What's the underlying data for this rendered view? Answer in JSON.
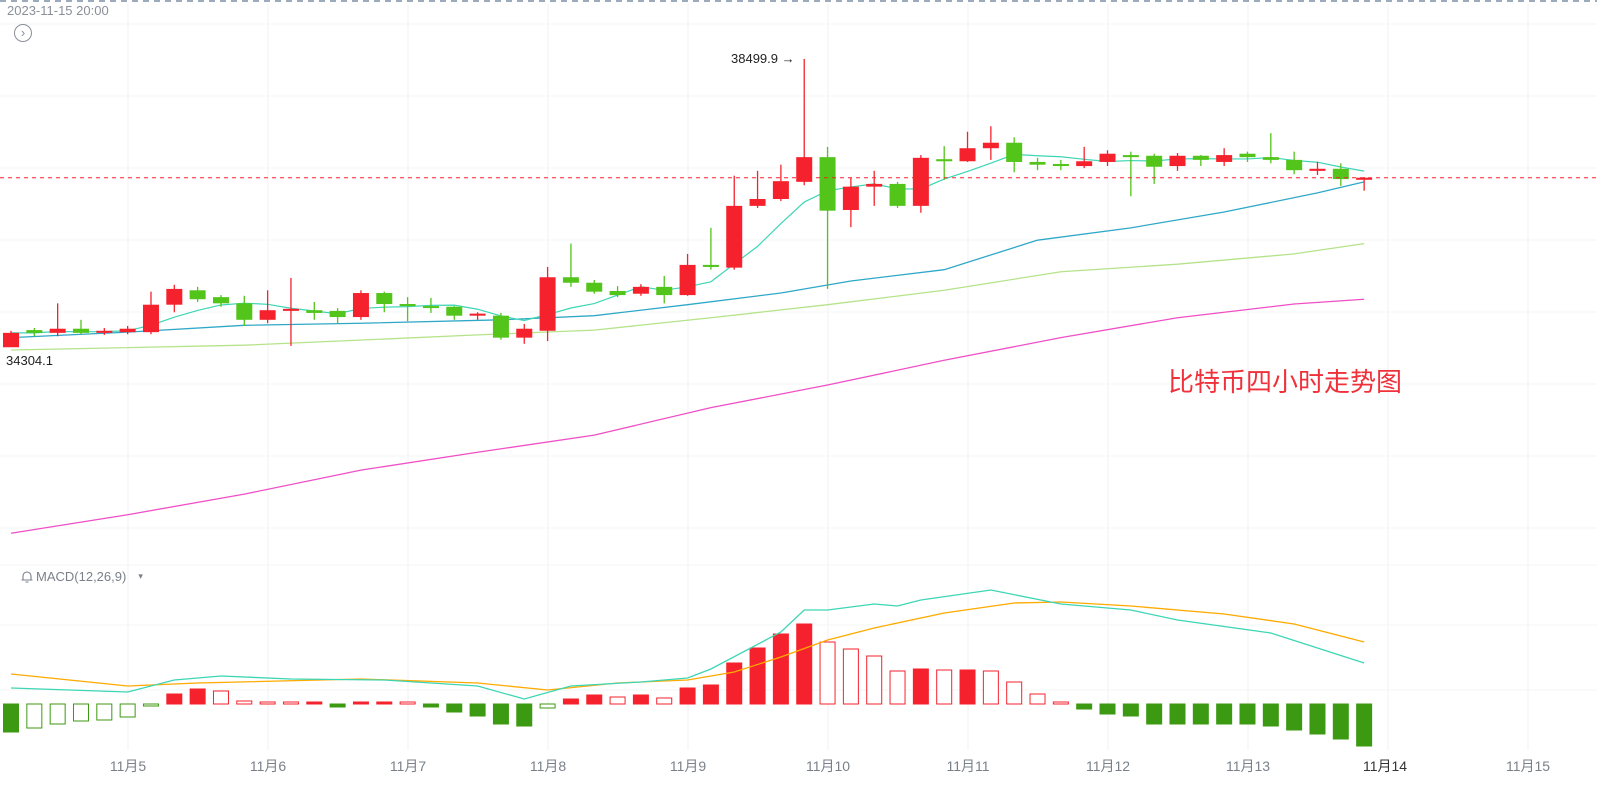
{
  "header": {
    "timestamp": "2023-11-15 20:00",
    "nav_icon": "chevron-right-circle-icon"
  },
  "annotation": {
    "title": "比特币四小时走势图",
    "high_label": "38499.9",
    "high_arrow": "→",
    "low_label": "34304.1"
  },
  "indicator": {
    "label": "MACD(12,26,9)",
    "icon": "bell-icon",
    "dropdown": "▾"
  },
  "colors": {
    "up": "#f5222d",
    "down": "#52c41a",
    "ma5": "#3dd6b5",
    "ma_blue": "#2fa8c8",
    "ma_green": "#b5e38a",
    "ma_magenta": "#f04fc6",
    "dif": "#3dd6b5",
    "dea": "#ffaa00",
    "last_price_line": "#f5222d",
    "macd_up": "#f5222d",
    "macd_down": "#3c9a12"
  },
  "chart_data": {
    "type": "candlestick",
    "title": "比特币四小时走势图",
    "interval": "4h",
    "x_tick_labels": [
      "11月5",
      "11月6",
      "11月7",
      "11月8",
      "11月9",
      "11月10",
      "11月11",
      "11月12",
      "11月13",
      "11月14",
      "11月15"
    ],
    "current_x_label": "11月14",
    "last_price": 36770,
    "price_range": [
      31500,
      38500
    ],
    "candles_ohlc": [
      [
        34300,
        34540,
        34304.1,
        34510
      ],
      [
        34550,
        34580,
        34460,
        34510
      ],
      [
        34510,
        34940,
        34460,
        34570
      ],
      [
        34570,
        34700,
        34490,
        34510
      ],
      [
        34510,
        34580,
        34480,
        34540
      ],
      [
        34520,
        34610,
        34490,
        34570
      ],
      [
        34520,
        35110,
        34490,
        34920
      ],
      [
        34920,
        35210,
        34810,
        35150
      ],
      [
        35130,
        35180,
        34960,
        35000
      ],
      [
        35030,
        35060,
        34890,
        34940
      ],
      [
        34940,
        35050,
        34610,
        34700
      ],
      [
        34700,
        35130,
        34650,
        34840
      ],
      [
        34830,
        35310,
        34320,
        34860
      ],
      [
        34840,
        34960,
        34700,
        34800
      ],
      [
        34830,
        34870,
        34650,
        34740
      ],
      [
        34740,
        35130,
        34700,
        35090
      ],
      [
        35090,
        35110,
        34810,
        34930
      ],
      [
        34930,
        35030,
        34680,
        34900
      ],
      [
        34900,
        35020,
        34800,
        34890
      ],
      [
        34890,
        34900,
        34700,
        34760
      ],
      [
        34760,
        34810,
        34700,
        34790
      ],
      [
        34760,
        34800,
        34410,
        34440
      ],
      [
        34440,
        34640,
        34350,
        34570
      ],
      [
        34540,
        35470,
        34390,
        35320
      ],
      [
        35320,
        35810,
        35180,
        35240
      ],
      [
        35240,
        35280,
        35080,
        35110
      ],
      [
        35120,
        35190,
        35030,
        35060
      ],
      [
        35080,
        35220,
        35050,
        35180
      ],
      [
        35180,
        35340,
        34940,
        35060
      ],
      [
        35060,
        35660,
        35050,
        35500
      ],
      [
        35500,
        36040,
        35430,
        35470
      ],
      [
        35460,
        36800,
        35430,
        36360
      ],
      [
        36360,
        36870,
        36330,
        36460
      ],
      [
        36460,
        36960,
        36430,
        36720
      ],
      [
        36710,
        38499.9,
        36660,
        37070
      ],
      [
        37070,
        37220,
        35150,
        36290
      ],
      [
        36300,
        36770,
        36050,
        36640
      ],
      [
        36640,
        36870,
        36360,
        36680
      ],
      [
        36680,
        36710,
        36330,
        36360
      ],
      [
        36360,
        37100,
        36260,
        37060
      ],
      [
        37040,
        37230,
        36740,
        37010
      ],
      [
        37010,
        37440,
        37000,
        37200
      ],
      [
        37200,
        37520,
        37030,
        37280
      ],
      [
        37280,
        37360,
        36850,
        37000
      ],
      [
        37000,
        37060,
        36880,
        36960
      ],
      [
        36970,
        37030,
        36880,
        36940
      ],
      [
        36940,
        37220,
        36910,
        37010
      ],
      [
        37000,
        37170,
        36940,
        37120
      ],
      [
        37100,
        37150,
        36500,
        37070
      ],
      [
        37090,
        37120,
        36680,
        36930
      ],
      [
        36940,
        37130,
        36870,
        37090
      ],
      [
        37090,
        37100,
        36940,
        37030
      ],
      [
        37000,
        37200,
        36940,
        37100
      ],
      [
        37120,
        37150,
        37000,
        37070
      ],
      [
        37070,
        37420,
        36980,
        37030
      ],
      [
        37030,
        37150,
        36820,
        36880
      ],
      [
        36870,
        37000,
        36810,
        36900
      ],
      [
        36900,
        36980,
        36650,
        36750
      ],
      [
        36740,
        36780,
        36580,
        36770
      ]
    ],
    "ma_series": [
      {
        "name": "MA-blue",
        "points": [
          [
            0,
            34440
          ],
          [
            5,
            34520
          ],
          [
            10,
            34620
          ],
          [
            15,
            34650
          ],
          [
            21,
            34700
          ],
          [
            25,
            34760
          ],
          [
            29,
            34920
          ],
          [
            33,
            35090
          ],
          [
            36,
            35265
          ],
          [
            40,
            35430
          ],
          [
            44,
            35860
          ],
          [
            48,
            36040
          ],
          [
            52,
            36270
          ],
          [
            56,
            36550
          ],
          [
            58,
            36710
          ]
        ]
      },
      {
        "name": "MA-green",
        "points": [
          [
            0,
            34260
          ],
          [
            10,
            34330
          ],
          [
            20,
            34480
          ],
          [
            25,
            34550
          ],
          [
            30,
            34730
          ],
          [
            35,
            34920
          ],
          [
            40,
            35130
          ],
          [
            45,
            35400
          ],
          [
            50,
            35510
          ],
          [
            55,
            35660
          ],
          [
            58,
            35810
          ]
        ]
      },
      {
        "name": "MA-magenta",
        "points": [
          [
            0,
            31590
          ],
          [
            5,
            31860
          ],
          [
            10,
            32160
          ],
          [
            15,
            32510
          ],
          [
            20,
            32770
          ],
          [
            25,
            33020
          ],
          [
            30,
            33420
          ],
          [
            35,
            33750
          ],
          [
            40,
            34110
          ],
          [
            45,
            34440
          ],
          [
            50,
            34730
          ],
          [
            55,
            34930
          ],
          [
            58,
            35000
          ]
        ]
      }
    ],
    "macd": {
      "params": "12,26,9",
      "histogram": [
        -28,
        -24,
        -20,
        -17,
        -16,
        -13,
        -2,
        10,
        15,
        13,
        3,
        2,
        1,
        1,
        -3,
        2,
        2,
        1,
        -3,
        -8,
        -12,
        -20,
        -22,
        -4,
        5,
        9,
        7,
        9,
        6,
        16,
        19,
        41,
        56,
        70,
        80,
        62,
        55,
        48,
        33,
        35,
        34,
        34,
        33,
        22,
        10,
        2,
        -5,
        -10,
        -12,
        -20,
        -20,
        -20,
        -20,
        -20,
        -22,
        -26,
        -30,
        -35,
        -42
      ],
      "dif": [
        [
          0,
          16
        ],
        [
          5,
          12
        ],
        [
          7,
          24
        ],
        [
          9,
          28
        ],
        [
          12,
          25
        ],
        [
          16,
          24
        ],
        [
          20,
          18
        ],
        [
          22,
          5
        ],
        [
          24,
          18
        ],
        [
          27,
          22
        ],
        [
          29,
          26
        ],
        [
          30,
          35
        ],
        [
          33,
          72
        ],
        [
          34,
          94
        ],
        [
          35,
          94
        ],
        [
          37,
          100
        ],
        [
          38,
          98
        ],
        [
          39,
          104
        ],
        [
          42,
          114
        ],
        [
          45,
          100
        ],
        [
          48,
          94
        ],
        [
          50,
          84
        ],
        [
          54,
          71
        ],
        [
          56,
          56
        ],
        [
          58,
          41
        ]
      ],
      "dea": [
        [
          0,
          30
        ],
        [
          5,
          18
        ],
        [
          8,
          21
        ],
        [
          15,
          25
        ],
        [
          20,
          21
        ],
        [
          23,
          14
        ],
        [
          26,
          21
        ],
        [
          29,
          24
        ],
        [
          31,
          32
        ],
        [
          33,
          47
        ],
        [
          35,
          64
        ],
        [
          37,
          76
        ],
        [
          40,
          91
        ],
        [
          43,
          101
        ],
        [
          45,
          102
        ],
        [
          48,
          98
        ],
        [
          52,
          90
        ],
        [
          55,
          80
        ],
        [
          58,
          62
        ]
      ]
    }
  }
}
